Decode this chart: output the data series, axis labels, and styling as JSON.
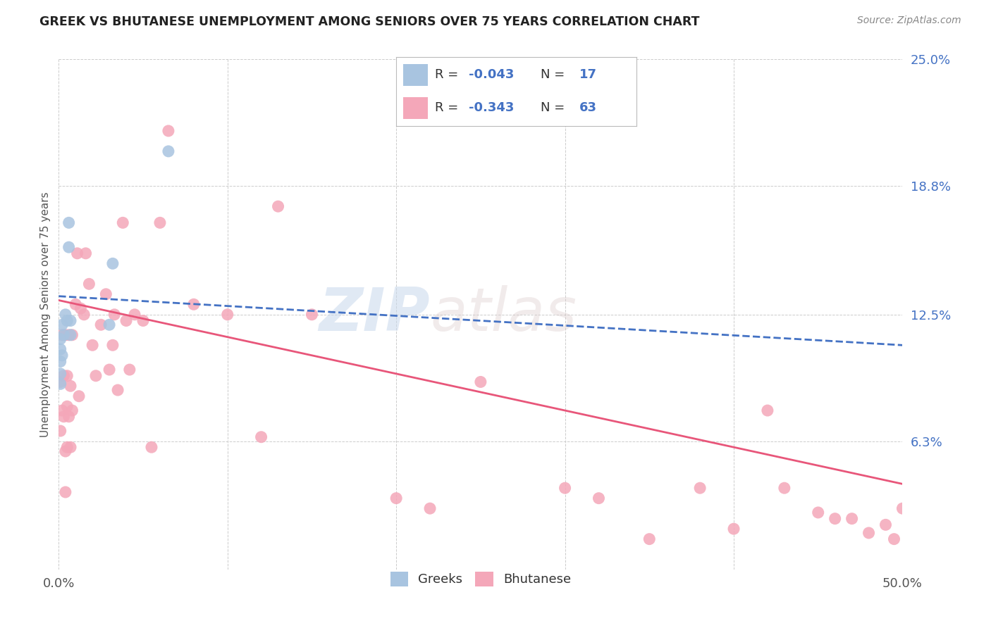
{
  "title": "GREEK VS BHUTANESE UNEMPLOYMENT AMONG SENIORS OVER 75 YEARS CORRELATION CHART",
  "source": "Source: ZipAtlas.com",
  "ylabel": "Unemployment Among Seniors over 75 years",
  "xlim": [
    0.0,
    0.5
  ],
  "ylim": [
    0.0,
    0.25
  ],
  "ytick_positions": [
    0.0,
    0.063,
    0.125,
    0.188,
    0.25
  ],
  "ytick_labels": [
    "",
    "6.3%",
    "12.5%",
    "18.8%",
    "25.0%"
  ],
  "greek_color": "#a8c4e0",
  "bhutanese_color": "#f4a7b9",
  "greek_line_color": "#4472c4",
  "bhutanese_line_color": "#e8567a",
  "watermark_zip": "ZIP",
  "watermark_atlas": "atlas",
  "legend_text": [
    [
      "R = ",
      "-0.043",
      "  N = ",
      "17"
    ],
    [
      "R = ",
      "-0.343",
      "  N = ",
      "63"
    ]
  ],
  "legend_colors": [
    "#a8c4e0",
    "#f4a7b9"
  ],
  "blue_text_color": "#4472c4",
  "greek_x": [
    0.001,
    0.001,
    0.001,
    0.001,
    0.001,
    0.002,
    0.002,
    0.003,
    0.004,
    0.005,
    0.006,
    0.006,
    0.007,
    0.007,
    0.03,
    0.032,
    0.065
  ],
  "greek_y": [
    0.113,
    0.108,
    0.102,
    0.096,
    0.091,
    0.12,
    0.105,
    0.115,
    0.125,
    0.122,
    0.158,
    0.17,
    0.122,
    0.115,
    0.12,
    0.15,
    0.205
  ],
  "bhutanese_x": [
    0.001,
    0.001,
    0.002,
    0.002,
    0.003,
    0.003,
    0.004,
    0.004,
    0.004,
    0.005,
    0.005,
    0.005,
    0.006,
    0.006,
    0.007,
    0.007,
    0.008,
    0.008,
    0.01,
    0.011,
    0.012,
    0.013,
    0.015,
    0.016,
    0.018,
    0.02,
    0.022,
    0.025,
    0.028,
    0.03,
    0.032,
    0.033,
    0.035,
    0.038,
    0.04,
    0.042,
    0.045,
    0.05,
    0.055,
    0.06,
    0.065,
    0.08,
    0.1,
    0.12,
    0.13,
    0.15,
    0.2,
    0.22,
    0.25,
    0.3,
    0.32,
    0.35,
    0.38,
    0.4,
    0.42,
    0.43,
    0.45,
    0.46,
    0.47,
    0.48,
    0.49,
    0.495,
    0.5
  ],
  "bhutanese_y": [
    0.092,
    0.068,
    0.115,
    0.078,
    0.095,
    0.075,
    0.115,
    0.058,
    0.038,
    0.095,
    0.08,
    0.06,
    0.115,
    0.075,
    0.09,
    0.06,
    0.115,
    0.078,
    0.13,
    0.155,
    0.085,
    0.128,
    0.125,
    0.155,
    0.14,
    0.11,
    0.095,
    0.12,
    0.135,
    0.098,
    0.11,
    0.125,
    0.088,
    0.17,
    0.122,
    0.098,
    0.125,
    0.122,
    0.06,
    0.17,
    0.215,
    0.13,
    0.125,
    0.065,
    0.178,
    0.125,
    0.035,
    0.03,
    0.092,
    0.04,
    0.035,
    0.015,
    0.04,
    0.02,
    0.078,
    0.04,
    0.028,
    0.025,
    0.025,
    0.018,
    0.022,
    0.015,
    0.03
  ]
}
